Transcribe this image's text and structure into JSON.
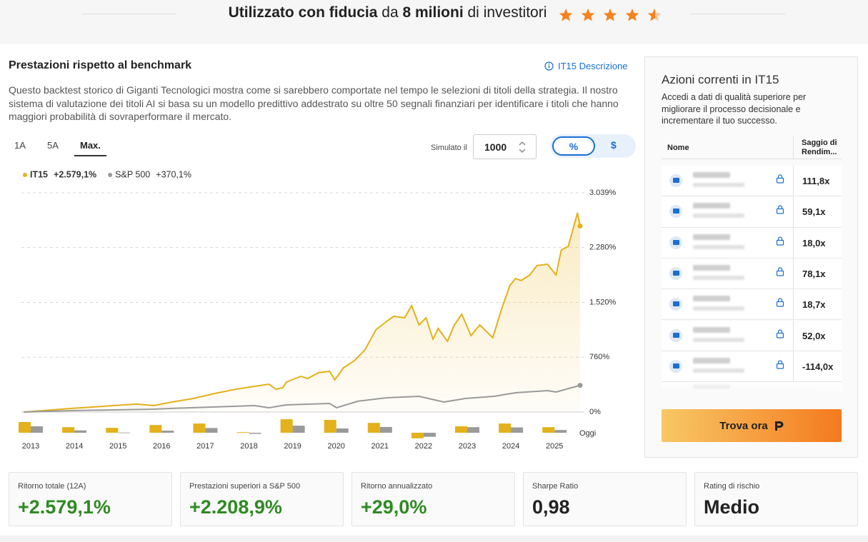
{
  "header": {
    "parts": [
      "Utilizzato con fiducia",
      "da",
      "8 milioni",
      "di",
      "investitori"
    ]
  },
  "panel": {
    "title": "Prestazioni rispetto al benchmark",
    "link": "IT15 Descrizione",
    "description": "Questo backtest storico di Giganti Tecnologici mostra come si sarebbero comportate nel tempo le selezioni di titoli della strategia. Il nostro sistema di valutazione dei titoli AI si basa su un modello predittivo addestrato su oltre 50 segnali finanziari per identificare i titoli che hanno maggiori probabilità di sovraperformare il mercato.",
    "tabs": [
      "1A",
      "5A",
      "Max."
    ],
    "simulate_label": "Simulato il",
    "amount": 1000,
    "units": [
      "%",
      "$"
    ]
  },
  "chart_data": [
    {
      "type": "line",
      "series": [
        {
          "name": "IT15",
          "color": "#e3b11b",
          "total_label": "+2.579,1%",
          "x": [
            2013.0,
            2013.44,
            2014.1,
            2014.6,
            2015.09,
            2015.58,
            2015.99,
            2016.4,
            2016.89,
            2017.38,
            2017.87,
            2018.29,
            2018.62,
            2018.78,
            2018.94,
            2019.02,
            2019.35,
            2019.51,
            2019.76,
            2020.01,
            2020.13,
            2020.33,
            2020.58,
            2020.82,
            2021.07,
            2021.32,
            2021.48,
            2021.73,
            2021.89,
            2022.06,
            2022.22,
            2022.38,
            2022.5,
            2022.71,
            2022.87,
            2023.04,
            2023.25,
            2023.45,
            2023.75,
            2023.94,
            2024.14,
            2024.27,
            2024.4,
            2024.6,
            2024.76,
            2025.0,
            2025.2,
            2025.32,
            2025.48,
            2025.69,
            2025.75
          ],
          "values": [
            0,
            20,
            50,
            70,
            90,
            110,
            90,
            139,
            188,
            257,
            317,
            356,
            386,
            317,
            337,
            416,
            495,
            465,
            545,
            564,
            446,
            614,
            713,
            861,
            1139,
            1257,
            1327,
            1307,
            1475,
            1208,
            1307,
            1010,
            1158,
            980,
            1208,
            1356,
            1059,
            1208,
            1030,
            1406,
            1752,
            1851,
            1822,
            1901,
            2030,
            2049,
            1901,
            2248,
            2297,
            2762,
            2579.1
          ]
        },
        {
          "name": "S&P 500",
          "color": "#9a9a9a",
          "total_label": "+370,1%",
          "x": [
            2013.0,
            2014.1,
            2015.09,
            2015.99,
            2016.4,
            2017.38,
            2018.29,
            2018.62,
            2019.02,
            2020.01,
            2020.17,
            2020.66,
            2021.32,
            2022.06,
            2022.63,
            2023.12,
            2023.78,
            2024.27,
            2025.0,
            2025.2,
            2025.75
          ],
          "values": [
            0,
            20,
            30,
            40,
            50,
            70,
            89,
            59,
            99,
            119,
            59,
            149,
            198,
            218,
            139,
            188,
            218,
            267,
            297,
            277,
            370.1
          ]
        }
      ],
      "xlim": [
        2013,
        2025.75
      ],
      "ylim": [
        0,
        3039
      ],
      "yticks": [
        {
          "value": 0,
          "label": "0%"
        },
        {
          "value": 760,
          "label": "760%"
        },
        {
          "value": 1520,
          "label": "1.520%"
        },
        {
          "value": 2280,
          "label": "2.280%"
        },
        {
          "value": 3039,
          "label": "3.039%"
        }
      ],
      "grid": true
    },
    {
      "type": "bar",
      "categories": [
        "2013",
        "2014",
        "2015",
        "2016",
        "2017",
        "2018",
        "2019",
        "2020",
        "2021",
        "2022",
        "2023",
        "2024",
        "2025"
      ],
      "end_label": "Oggi",
      "series": [
        {
          "color": "#e3b11b",
          "values": [
            50,
            26,
            23,
            36,
            43,
            3,
            63,
            60,
            46,
            -26,
            30,
            43,
            26
          ]
        },
        {
          "color": "#9a9a9a",
          "values": [
            30,
            11,
            1,
            10,
            22,
            -5,
            33,
            20,
            27,
            -19,
            26,
            25,
            13
          ]
        }
      ]
    }
  ],
  "holdings": {
    "title": "Azioni correnti in IT15",
    "description": "Accedi a dati di qualità superiore per migliorare il processo decisionale e incrementare il tuo successo.",
    "columns": [
      "Nome",
      "Saggio di Rendim..."
    ],
    "returns": [
      "111,8x",
      "59,1x",
      "18,0x",
      "78,1x",
      "18,7x",
      "52,0x",
      "-114,0x"
    ],
    "button": "Trova ora"
  },
  "stats": [
    {
      "label": "Ritorno totale (12A)",
      "value": "+2.579,1%"
    },
    {
      "label": "Prestazioni superiori a S&P 500",
      "value": "+2.208,9%"
    },
    {
      "label": "Ritorno annualizzato",
      "value": "+29,0%"
    },
    {
      "label": "Sharpe Ratio",
      "value": "0,98"
    },
    {
      "label": "Rating di rischio",
      "value": "Medio"
    }
  ]
}
